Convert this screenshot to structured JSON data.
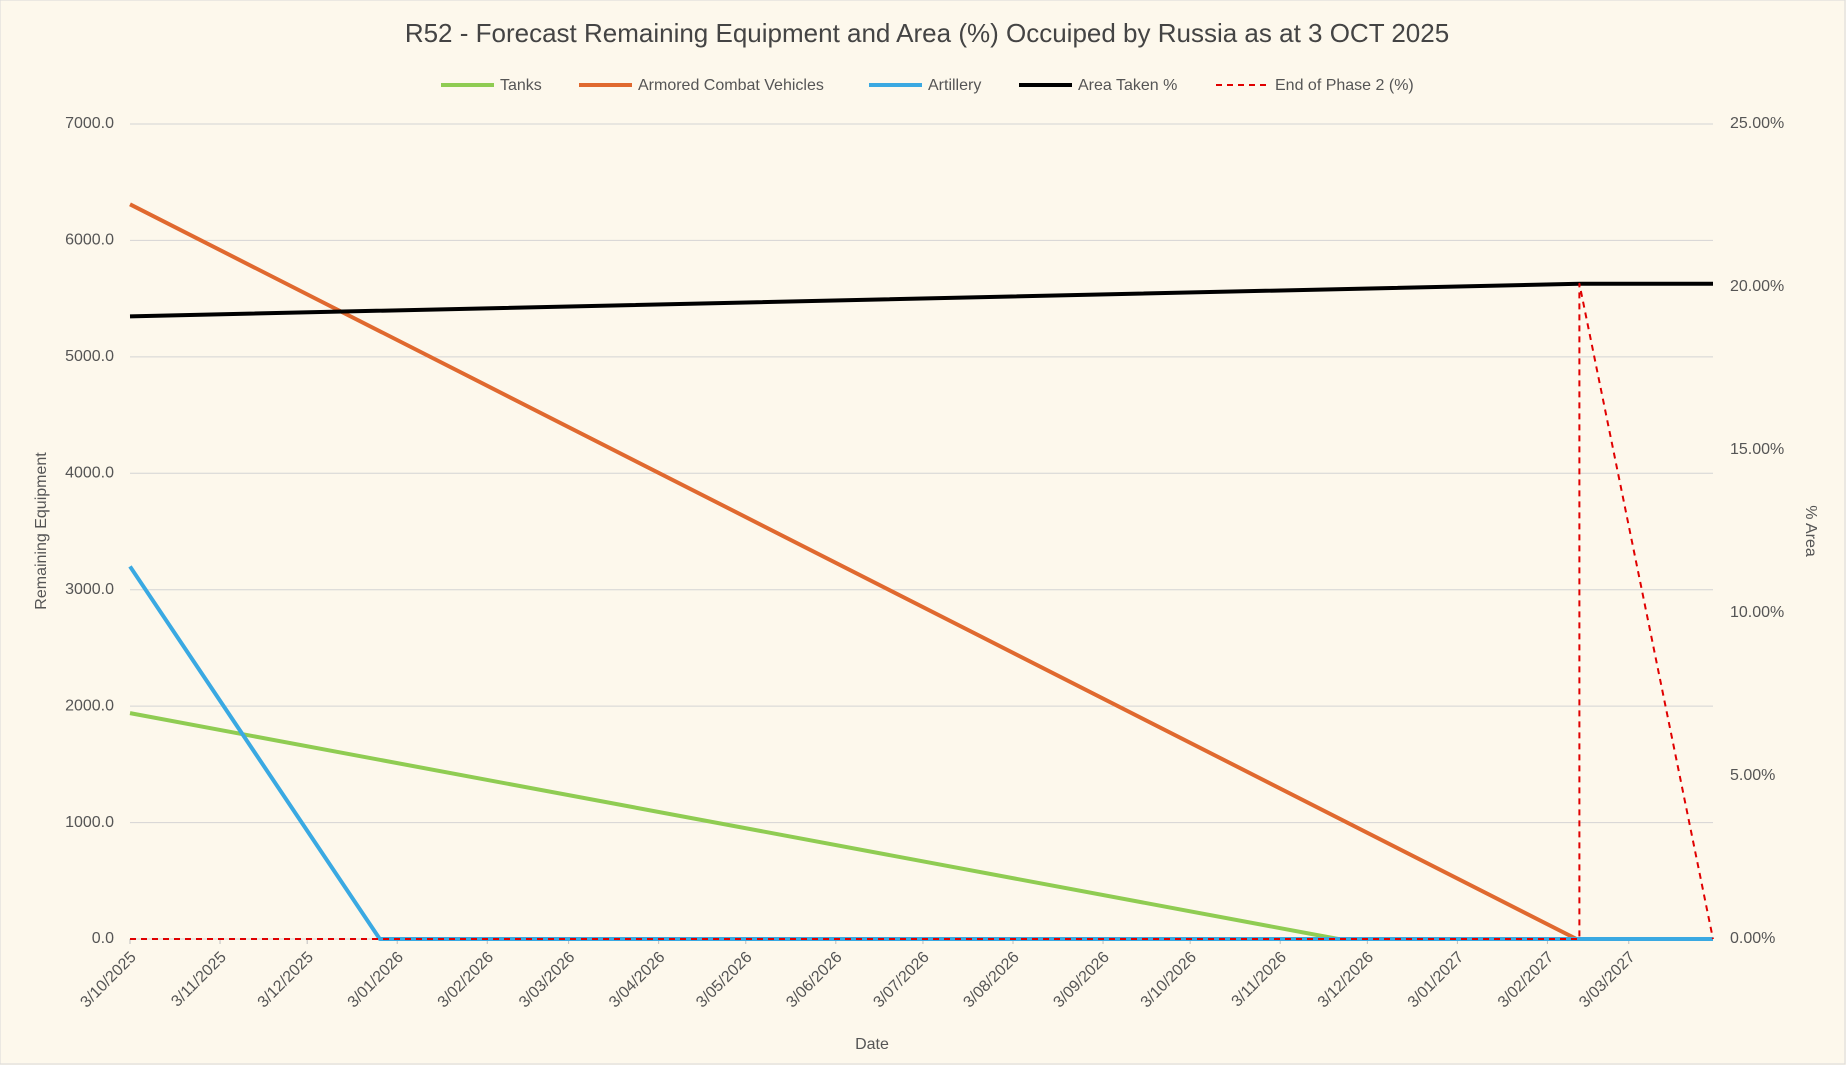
{
  "chart_data": {
    "type": "line",
    "title": "R52 - Forecast Remaining Equipment and Area (%) Occuiped by Russia as at 3 OCT 2025",
    "x_label": "Date",
    "y_label": "Remaining Equipment",
    "y2_label": "% Area",
    "xlim": [
      "3/10/2025",
      "1/04/2027"
    ],
    "xticks": [
      "3/10/2025",
      "3/11/2025",
      "3/12/2025",
      "3/01/2026",
      "3/02/2026",
      "3/03/2026",
      "3/04/2026",
      "3/05/2026",
      "3/06/2026",
      "3/07/2026",
      "3/08/2026",
      "3/09/2026",
      "3/10/2026",
      "3/11/2026",
      "3/12/2026",
      "3/01/2027",
      "3/02/2027",
      "3/03/2027"
    ],
    "ylim": [
      0,
      7000
    ],
    "yticks": [
      {
        "value": 0,
        "label": "0.0"
      },
      {
        "value": 1000,
        "label": "1000.0"
      },
      {
        "value": 2000,
        "label": "2000.0"
      },
      {
        "value": 3000,
        "label": "3000.0"
      },
      {
        "value": 4000,
        "label": "4000.0"
      },
      {
        "value": 5000,
        "label": "5000.0"
      },
      {
        "value": 6000,
        "label": "6000.0"
      },
      {
        "value": 7000,
        "label": "7000.0"
      }
    ],
    "y2lim": [
      0,
      25
    ],
    "y2ticks": [
      {
        "value": 0,
        "label": "0.00%"
      },
      {
        "value": 5,
        "label": "5.00%"
      },
      {
        "value": 10,
        "label": "10.00%"
      },
      {
        "value": 15,
        "label": "15.00%"
      },
      {
        "value": 20,
        "label": "20.00%"
      },
      {
        "value": 25,
        "label": "25.00%"
      }
    ],
    "grid": true,
    "legend": "top",
    "series": [
      {
        "name": "Tanks",
        "color": "#8fcc52",
        "x": [
          "3/10/2025",
          "23/11/2026",
          "1/04/2027"
        ],
        "values": [
          1940,
          0,
          0
        ]
      },
      {
        "name": "Armored Combat Vehicles",
        "color": "#e0692f",
        "x": [
          "3/10/2025",
          "13/02/2027",
          "1/04/2027"
        ],
        "values": [
          6310,
          0,
          0
        ]
      },
      {
        "name": "Artillery",
        "color": "#3aa9e2",
        "x": [
          "3/10/2025",
          "28/12/2025",
          "1/04/2027"
        ],
        "values": [
          3200,
          0,
          0
        ]
      },
      {
        "name": "Area Taken %",
        "color": "#000000",
        "axis": "y2",
        "x": [
          "3/10/2025",
          "14/02/2027",
          "1/04/2027"
        ],
        "values": [
          19.1,
          20.1,
          20.1
        ]
      },
      {
        "name": "End of Phase 2 (%)",
        "color": "#e00000",
        "axis": "y2",
        "dashed": true,
        "x": [
          "3/10/2025",
          "14/02/2027",
          "14/02/2027",
          "1/04/2027"
        ],
        "values": [
          0,
          0,
          20.1,
          0
        ]
      }
    ]
  }
}
